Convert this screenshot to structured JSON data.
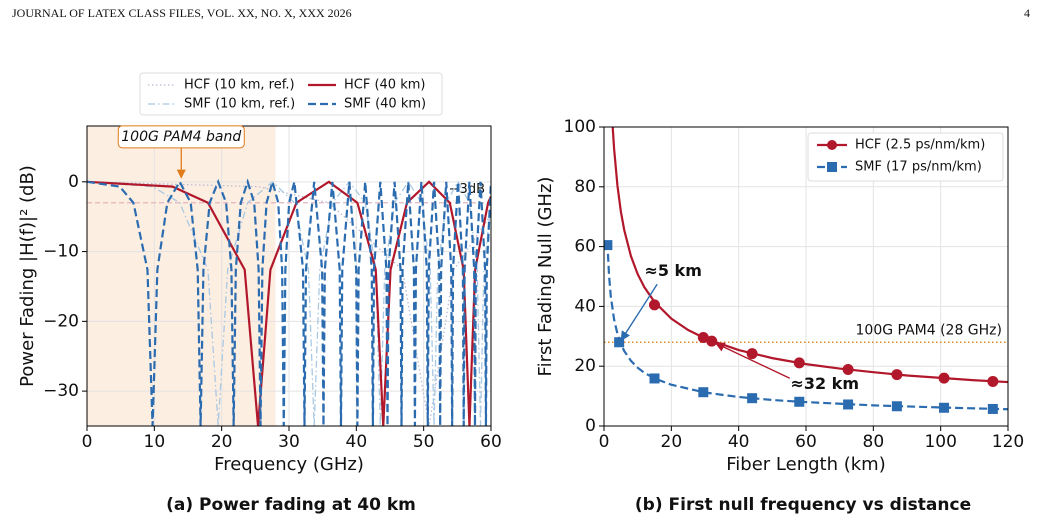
{
  "header": {
    "left": "JOURNAL OF LATEX CLASS FILES, VOL. XX, NO. X, XXX 2026",
    "page": "4"
  },
  "chart_data": [
    {
      "type": "line",
      "caption": "(a) Power fading at 40 km",
      "x_label": "Frequency (GHz)",
      "y_label": "Power Fading |H(f)|² (dB)",
      "xlim": [
        0,
        60
      ],
      "ylim": [
        -35,
        8
      ],
      "xticks": [
        0,
        10,
        20,
        30,
        40,
        50,
        60
      ],
      "yticks": [
        {
          "value": -30,
          "label": "−30"
        },
        {
          "value": -20,
          "label": "−20"
        },
        {
          "value": -10,
          "label": "−10"
        },
        0
      ],
      "grid": true,
      "band": [
        0,
        28
      ],
      "band_color": "#fdeee2",
      "hline": {
        "value": -3,
        "label": "−3dB",
        "color": "#e3b5bd"
      },
      "annotations": [
        {
          "text": "100G PAM4 band",
          "x": 14,
          "y": 0,
          "color": "#e07b1a"
        }
      ],
      "series": [
        {
          "name": "HCF (10 km, ref.)",
          "color": "#b9b9d3",
          "style": "dotted",
          "x": [
            0,
            25.4,
            35.92,
            46.84,
            50.8,
            54.48,
            60
          ],
          "values": [
            0,
            -0.69,
            -3,
            -12.6,
            -35,
            -12.6,
            -4.7
          ]
        },
        {
          "name": "SMF (10 km, ref.)",
          "color": "#a9c8e2",
          "style": "dashdot",
          "x": [
            0,
            9.74,
            13.77,
            17.96,
            19.48,
            20.89,
            23.86,
            27.55,
            30.8,
            32.89,
            33.74,
            34.57,
            36.44,
            38.96,
            41.32,
            42.9,
            43.56,
            44.21,
            45.68,
            47.72,
            49.66,
            50.98,
            51.54,
            52.09,
            53.35,
            55.1,
            56.79,
            57.95,
            58.44,
            58.93,
            60
          ],
          "values": [
            0,
            -0.69,
            -3,
            -12.6,
            -35,
            -12.6,
            -3,
            0,
            -3,
            -12.6,
            -35,
            -12.6,
            -3,
            0,
            -3,
            -12.6,
            -35,
            -12.6,
            -3,
            0,
            -3,
            -12.6,
            -35,
            -12.6,
            -3,
            0,
            -3,
            -12.6,
            -35,
            -12.6,
            -3.2
          ]
        },
        {
          "name": "HCF (40 km)",
          "color": "#b2182b",
          "style": "solid",
          "x": [
            0,
            12.7,
            17.96,
            23.42,
            25.4,
            27.24,
            31.11,
            35.92,
            40.16,
            42.88,
            44.0,
            45.08,
            47.52,
            50.8,
            53.88,
            55.94,
            56.8,
            57.64,
            59.57,
            60
          ],
          "values": [
            0,
            -0.69,
            -3,
            -12.6,
            -35,
            -12.6,
            -3,
            0,
            -3,
            -12.6,
            -35,
            -12.6,
            -3,
            0,
            -3,
            -12.6,
            -35,
            -12.6,
            -3,
            -2.1
          ]
        },
        {
          "name": "SMF (40 km)",
          "color": "#2b6cb0",
          "style": "dashed",
          "x": [
            0,
            4.87,
            6.89,
            8.98,
            9.74,
            10.45,
            11.93,
            13.77,
            15.4,
            16.44,
            16.87,
            17.29,
            18.22,
            19.48,
            20.66,
            21.45,
            21.78,
            22.1,
            22.84,
            23.86,
            24.83,
            25.49,
            25.77,
            26.04,
            26.67,
            27.55,
            28.4,
            28.98,
            29.22,
            29.46,
            30.02,
            30.8,
            32.08,
            32.3,
            32.52,
            33.74,
            34.92,
            35.12,
            35.32,
            36.44,
            37.53,
            37.72,
            37.91,
            38.96,
            39.98,
            40.16,
            40.34,
            41.32,
            42.29,
            42.46,
            42.62,
            43.56,
            44.47,
            44.63,
            44.79,
            45.68,
            46.56,
            46.71,
            46.86,
            47.72,
            48.55,
            48.7,
            48.85,
            49.66,
            50.47,
            50.61,
            50.75,
            51.54,
            52.32,
            52.45,
            52.59,
            53.35,
            54.1,
            54.23,
            54.36,
            55.1,
            55.82,
            55.95,
            56.08,
            56.79,
            57.5,
            57.62,
            57.75,
            58.44,
            59.13,
            59.25,
            59.37,
            60
          ],
          "values": [
            0,
            -0.69,
            -3,
            -12.6,
            -35,
            -12.6,
            -3,
            0,
            -3,
            -12.6,
            -35,
            -12.6,
            -3,
            0,
            -3,
            -12.6,
            -35,
            -12.6,
            -3,
            0,
            -3,
            -12.6,
            -35,
            -12.6,
            -3,
            0,
            -3,
            -12.6,
            -35,
            -12.6,
            -3,
            0,
            -12.6,
            -35,
            -12.6,
            0,
            -12.6,
            -35,
            -12.6,
            0,
            -12.6,
            -35,
            -12.6,
            0,
            -12.6,
            -35,
            -12.6,
            0,
            -12.6,
            -35,
            -12.6,
            0,
            -12.6,
            -35,
            -12.6,
            0,
            -12.6,
            -35,
            -12.6,
            0,
            -12.6,
            -35,
            -12.6,
            0,
            -12.6,
            -35,
            -12.6,
            0,
            -12.6,
            -35,
            -12.6,
            0,
            -12.6,
            -35,
            -12.6,
            0,
            -12.6,
            -35,
            -12.6,
            0,
            -12.6,
            -35,
            -12.6,
            0,
            -12.6,
            -35,
            -12.6,
            0
          ]
        }
      ]
    },
    {
      "type": "line",
      "caption": "(b) First null frequency vs distance",
      "x_label": "Fiber Length (km)",
      "y_label": "First Fading Null (GHz)",
      "xlim": [
        0,
        120
      ],
      "ylim": [
        0,
        100
      ],
      "xticks": [
        0,
        20,
        40,
        60,
        80,
        100,
        120
      ],
      "yticks": [
        0,
        20,
        40,
        60,
        80,
        100
      ],
      "grid": true,
      "hline": {
        "value": 28,
        "label": "100G PAM4 (28 GHz)",
        "color": "#e08a1e"
      },
      "annotations": [
        {
          "text": "≈5 km",
          "x": 4.5,
          "y": 28,
          "color": "#2b6cb0"
        },
        {
          "text": "≈32 km",
          "x": 32,
          "y": 28,
          "color": "#b2182b"
        }
      ],
      "series": [
        {
          "name": "HCF (2.5 ps/nm/km)",
          "color": "#b2182b",
          "style": "solid",
          "marker": "circle",
          "x": [
            2.58,
            3,
            4,
            5,
            6,
            8,
            10,
            12,
            15,
            20,
            25,
            30,
            40,
            50,
            60,
            70,
            80,
            90,
            100,
            110,
            120
          ],
          "values": [
            100,
            92.7,
            80.3,
            71.8,
            65.6,
            56.8,
            50.8,
            46.4,
            41.5,
            35.9,
            32.1,
            29.3,
            25.4,
            22.7,
            20.7,
            19.2,
            18.0,
            16.9,
            16.1,
            15.3,
            14.7
          ],
          "marker_x": [
            15,
            29.5,
            32,
            44,
            58,
            72.5,
            87,
            101,
            115.5
          ],
          "marker_values": [
            40.5,
            29.6,
            28.4,
            24.2,
            21.1,
            18.9,
            17.2,
            16.0,
            14.9
          ]
        },
        {
          "name": "SMF (17 ps/nm/km)",
          "color": "#2b6cb0",
          "style": "dashed",
          "marker": "square",
          "x": [
            1,
            1.5,
            2,
            3,
            4,
            5,
            6,
            8,
            10,
            12,
            15,
            20,
            30,
            40,
            50,
            60,
            80,
            100,
            120
          ],
          "values": [
            61.6,
            50.3,
            43.6,
            35.6,
            30.8,
            27.5,
            25.1,
            21.8,
            19.5,
            17.8,
            15.9,
            13.8,
            11.2,
            9.7,
            8.7,
            8.0,
            6.9,
            6.2,
            5.6
          ],
          "marker_x": [
            1,
            4.5,
            15,
            29.5,
            44,
            58,
            72.5,
            87,
            101,
            115.5
          ],
          "marker_values": [
            60.5,
            28,
            15.9,
            11.3,
            9.3,
            8.1,
            7.2,
            6.6,
            6.1,
            5.7
          ]
        }
      ]
    }
  ]
}
